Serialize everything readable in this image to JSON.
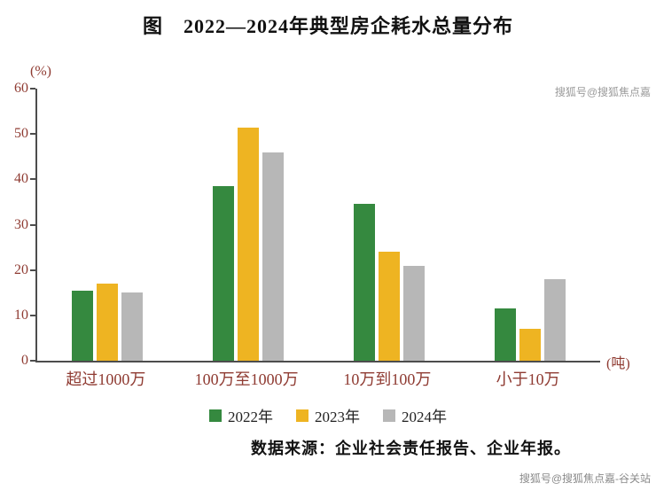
{
  "title": "图　2022—2024年典型房企耗水总量分布",
  "source": "数据来源：企业社会责任报告、企业年报。",
  "watermark_top": "搜狐号@搜狐焦点嘉",
  "watermark_bottom": "搜狐号@搜狐焦点嘉-谷关站",
  "axis_color": "#4d4d4d",
  "axis_text_color": "#8f3b32",
  "chart_data": {
    "type": "bar",
    "title": "2022—2024年典型房企耗水总量分布",
    "categories": [
      "超过1000万",
      "100万至1000万",
      "10万到100万",
      "小于10万"
    ],
    "series": [
      {
        "name": "2022年",
        "color": "#35893f",
        "values": [
          15.5,
          38.5,
          34.5,
          11.5
        ]
      },
      {
        "name": "2023年",
        "color": "#eeb422",
        "values": [
          17,
          51.5,
          24,
          7
        ]
      },
      {
        "name": "2024年",
        "color": "#b7b7b7",
        "values": [
          15,
          46,
          21,
          18
        ]
      }
    ],
    "ylabel": "(%)",
    "xlabel": "(吨)",
    "ylim": [
      0,
      60
    ],
    "yticks": [
      0,
      10,
      20,
      30,
      40,
      50,
      60
    ],
    "grid": false,
    "legend_position": "bottom"
  }
}
